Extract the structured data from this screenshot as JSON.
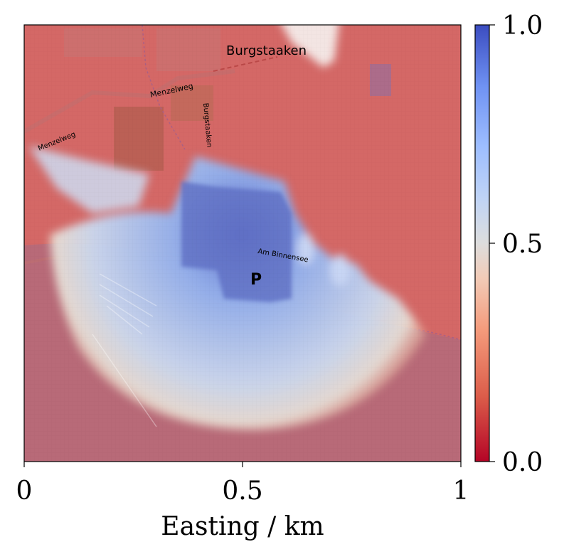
{
  "chart_data": {
    "type": "heatmap",
    "xlabel": "Easting / km",
    "xlim": [
      0,
      1
    ],
    "x_ticks": [
      {
        "value": 0,
        "label": "0"
      },
      {
        "value": 0.5,
        "label": "0.5"
      },
      {
        "value": 1,
        "label": "1"
      }
    ],
    "colorbar": {
      "colormap": "coolwarm",
      "range": [
        0.0,
        1.0
      ],
      "ticks": [
        {
          "value": 0.0,
          "label": "0.0"
        },
        {
          "value": 0.5,
          "label": "0.5"
        },
        {
          "value": 1.0,
          "label": "1.0"
        }
      ]
    },
    "background": "street map overlay",
    "map_labels": [
      "Burgstaaken",
      "Menzelweg",
      "Menzelweg",
      "Burgstaaken",
      "Am Binnensee",
      "P"
    ],
    "colors": {
      "low": "#b40426",
      "mid": "#dddddd",
      "high": "#3b4cc0"
    }
  }
}
